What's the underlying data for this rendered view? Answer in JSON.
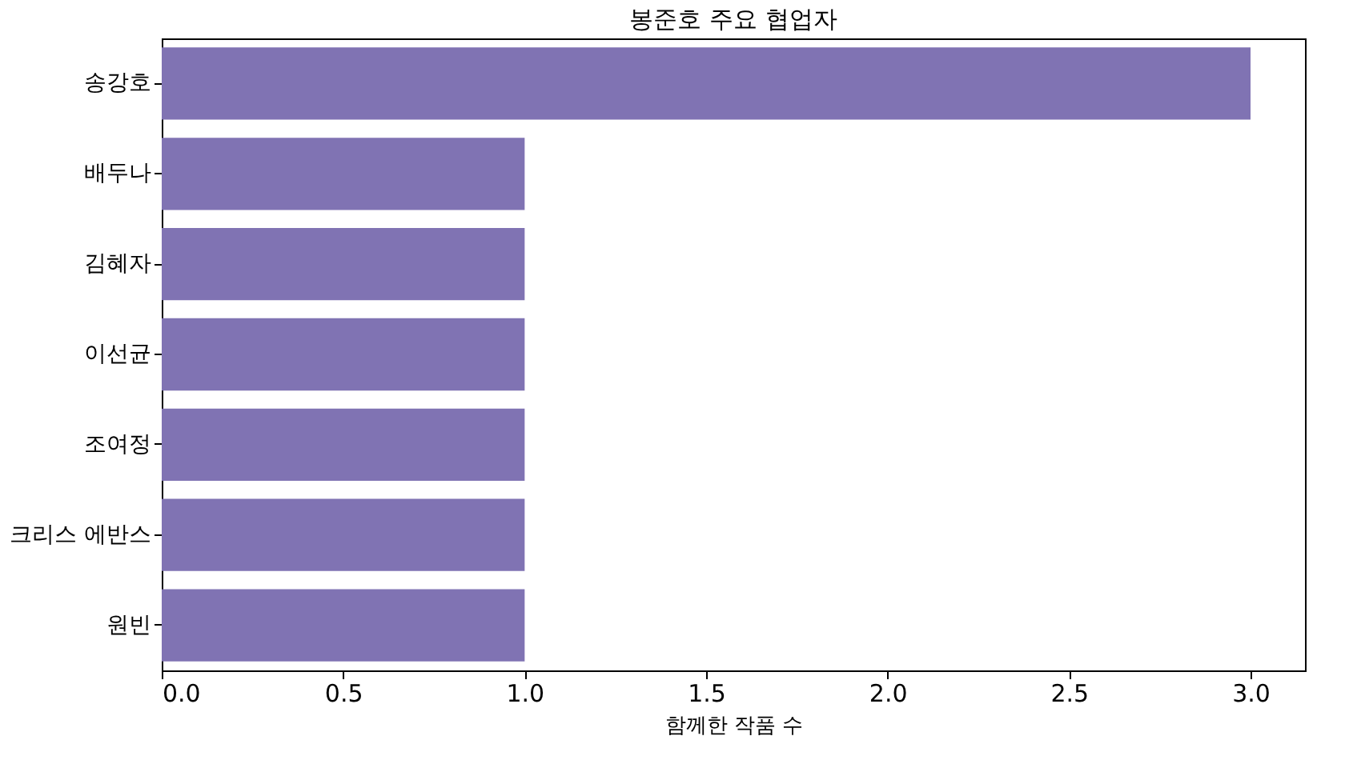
{
  "chart_data": {
    "type": "bar",
    "orientation": "horizontal",
    "title": "봉준호 주요 협업자",
    "xlabel": "함께한 작품 수",
    "categories": [
      "송강호",
      "배두나",
      "김혜자",
      "이선균",
      "조여정",
      "크리스 에반스",
      "원빈"
    ],
    "values": [
      3,
      1,
      1,
      1,
      1,
      1,
      1
    ],
    "color": "#8073b3",
    "xlim": [
      0,
      3.15
    ],
    "xticks": [
      {
        "value": 0,
        "label": "0.0"
      },
      {
        "value": 0.5,
        "label": "0.5"
      },
      {
        "value": 1,
        "label": "1.0"
      },
      {
        "value": 1.5,
        "label": "1.5"
      },
      {
        "value": 2,
        "label": "2.0"
      },
      {
        "value": 2.5,
        "label": "2.5"
      },
      {
        "value": 3,
        "label": "3.0"
      }
    ],
    "grid": false
  }
}
